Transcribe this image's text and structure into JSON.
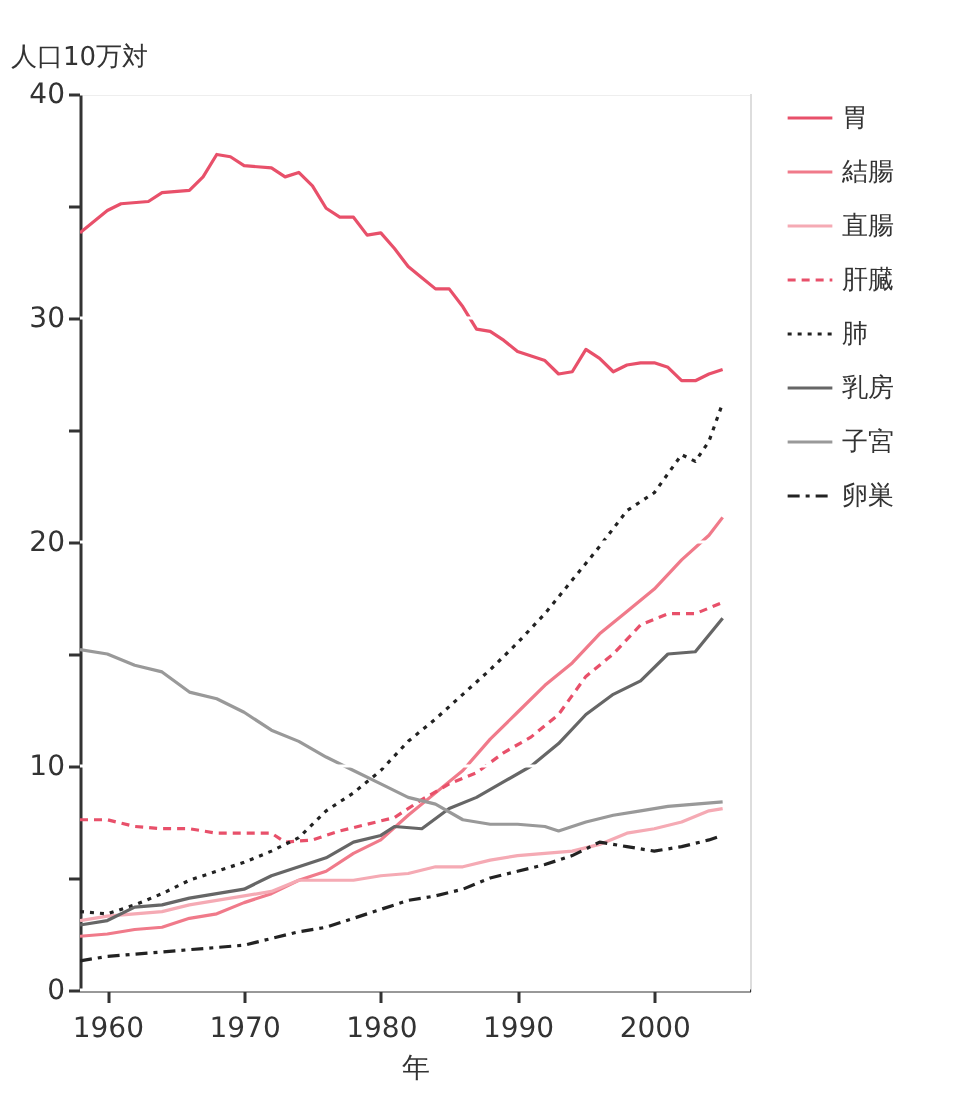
{
  "chart_data": {
    "type": "line",
    "ylabel": "人口10万対",
    "xlabel": "年",
    "xlim": [
      1958,
      2007
    ],
    "xticks": [
      1960,
      1970,
      1980,
      1990,
      2000
    ],
    "ylim": [
      0,
      40
    ],
    "yticks": [
      0,
      {
        "value": 5,
        "label": null
      },
      10,
      {
        "value": 15,
        "label": null
      },
      20,
      {
        "value": 25,
        "label": null
      },
      30,
      {
        "value": 35,
        "label": null
      },
      40
    ],
    "grid": "y",
    "legend": "right",
    "series": [
      {
        "name": "胃",
        "color": "#e8506a",
        "line_style": "solid",
        "x": [
          1958,
          1960,
          1961,
          1963,
          1964,
          1966,
          1967,
          1968,
          1969,
          1970,
          1972,
          1973,
          1974,
          1975,
          1976,
          1977,
          1978,
          1979,
          1980,
          1981,
          1982,
          1983,
          1984,
          1985,
          1986,
          1987,
          1988,
          1989,
          1990,
          1991,
          1992,
          1993,
          1994,
          1995,
          1996,
          1997,
          1998,
          1999,
          2000,
          2001,
          2002,
          2003,
          2004,
          2005
        ],
        "values": [
          33.8,
          34.8,
          35.1,
          35.2,
          35.6,
          35.7,
          36.3,
          37.3,
          37.2,
          36.8,
          36.7,
          36.3,
          36.5,
          35.9,
          34.9,
          34.5,
          34.5,
          33.7,
          33.8,
          33.1,
          32.3,
          31.8,
          31.3,
          31.3,
          30.5,
          29.5,
          29.4,
          29.0,
          28.5,
          28.3,
          28.1,
          27.5,
          27.6,
          28.6,
          28.2,
          27.6,
          27.9,
          28.0,
          28.0,
          27.8,
          27.2,
          27.2,
          27.5,
          27.7
        ]
      },
      {
        "name": "結腸",
        "color": "#f07a8a",
        "line_style": "solid",
        "x": [
          1958,
          1960,
          1962,
          1964,
          1966,
          1968,
          1970,
          1972,
          1974,
          1976,
          1978,
          1980,
          1982,
          1984,
          1986,
          1988,
          1990,
          1992,
          1994,
          1996,
          1998,
          2000,
          2002,
          2004,
          2005
        ],
        "values": [
          2.4,
          2.5,
          2.7,
          2.8,
          3.2,
          3.4,
          3.9,
          4.3,
          4.9,
          5.3,
          6.1,
          6.7,
          7.8,
          8.8,
          9.8,
          11.2,
          12.4,
          13.6,
          14.6,
          15.9,
          16.9,
          17.9,
          19.2,
          20.3,
          21.1
        ]
      },
      {
        "name": "直腸",
        "color": "#f5aab4",
        "line_style": "solid",
        "x": [
          1958,
          1960,
          1962,
          1964,
          1966,
          1968,
          1970,
          1972,
          1974,
          1976,
          1978,
          1980,
          1982,
          1984,
          1986,
          1988,
          1990,
          1992,
          1994,
          1996,
          1998,
          2000,
          2002,
          2004,
          2005
        ],
        "values": [
          3.1,
          3.3,
          3.4,
          3.5,
          3.8,
          4.0,
          4.2,
          4.4,
          4.9,
          4.9,
          4.9,
          5.1,
          5.2,
          5.5,
          5.5,
          5.8,
          6.0,
          6.1,
          6.2,
          6.5,
          7.0,
          7.2,
          7.5,
          8.0,
          8.1
        ]
      },
      {
        "name": "肝臓",
        "color": "#e8506a",
        "line_style": "dashed",
        "x": [
          1958,
          1960,
          1962,
          1964,
          1966,
          1968,
          1970,
          1972,
          1973,
          1975,
          1977,
          1979,
          1981,
          1983,
          1985,
          1987,
          1989,
          1991,
          1993,
          1995,
          1997,
          1999,
          2001,
          2003,
          2005
        ],
        "values": [
          7.6,
          7.6,
          7.3,
          7.2,
          7.2,
          7.0,
          7.0,
          7.0,
          6.6,
          6.7,
          7.1,
          7.4,
          7.7,
          8.5,
          9.2,
          9.7,
          10.6,
          11.3,
          12.3,
          14.0,
          15.0,
          16.3,
          16.8,
          16.8,
          17.3
        ]
      },
      {
        "name": "肺",
        "color": "#222222",
        "line_style": "dotted",
        "x": [
          1958,
          1960,
          1962,
          1964,
          1966,
          1968,
          1970,
          1972,
          1974,
          1976,
          1978,
          1980,
          1982,
          1984,
          1986,
          1988,
          1990,
          1992,
          1994,
          1996,
          1998,
          2000,
          2002,
          2003,
          2004,
          2005
        ],
        "values": [
          3.5,
          3.4,
          3.8,
          4.3,
          4.9,
          5.3,
          5.7,
          6.2,
          6.8,
          8.0,
          8.8,
          9.8,
          11.1,
          12.1,
          13.2,
          14.3,
          15.5,
          16.8,
          18.3,
          19.8,
          21.4,
          22.2,
          23.9,
          23.6,
          24.5,
          26.2
        ]
      },
      {
        "name": "乳房",
        "color": "#666666",
        "line_style": "solid",
        "x": [
          1958,
          1960,
          1962,
          1964,
          1966,
          1968,
          1970,
          1972,
          1974,
          1976,
          1978,
          1980,
          1981,
          1983,
          1985,
          1987,
          1989,
          1991,
          1993,
          1995,
          1997,
          1999,
          2001,
          2003,
          2005
        ],
        "values": [
          2.9,
          3.1,
          3.7,
          3.8,
          4.1,
          4.3,
          4.5,
          5.1,
          5.5,
          5.9,
          6.6,
          6.9,
          7.3,
          7.2,
          8.1,
          8.6,
          9.3,
          10.0,
          11.0,
          12.3,
          13.2,
          13.8,
          15.0,
          15.1,
          16.6
        ]
      },
      {
        "name": "子宮",
        "color": "#999999",
        "line_style": "solid",
        "x": [
          1958,
          1960,
          1962,
          1964,
          1966,
          1968,
          1970,
          1972,
          1974,
          1976,
          1978,
          1980,
          1982,
          1984,
          1986,
          1988,
          1990,
          1992,
          1993,
          1995,
          1997,
          1999,
          2001,
          2003,
          2005
        ],
        "values": [
          15.2,
          15.0,
          14.5,
          14.2,
          13.3,
          13.0,
          12.4,
          11.6,
          11.1,
          10.4,
          9.8,
          9.2,
          8.6,
          8.3,
          7.6,
          7.4,
          7.4,
          7.3,
          7.1,
          7.5,
          7.8,
          8.0,
          8.2,
          8.3,
          8.4
        ]
      },
      {
        "name": "卵巣",
        "color": "#222222",
        "line_style": "dashdot",
        "x": [
          1958,
          1960,
          1962,
          1964,
          1966,
          1968,
          1970,
          1972,
          1974,
          1976,
          1978,
          1980,
          1982,
          1984,
          1986,
          1988,
          1990,
          1992,
          1994,
          1996,
          1998,
          2000,
          2002,
          2004,
          2005
        ],
        "values": [
          1.3,
          1.5,
          1.6,
          1.7,
          1.8,
          1.9,
          2.0,
          2.3,
          2.6,
          2.8,
          3.2,
          3.6,
          4.0,
          4.2,
          4.5,
          5.0,
          5.3,
          5.6,
          6.0,
          6.6,
          6.4,
          6.2,
          6.4,
          6.7,
          6.9
        ]
      }
    ]
  }
}
